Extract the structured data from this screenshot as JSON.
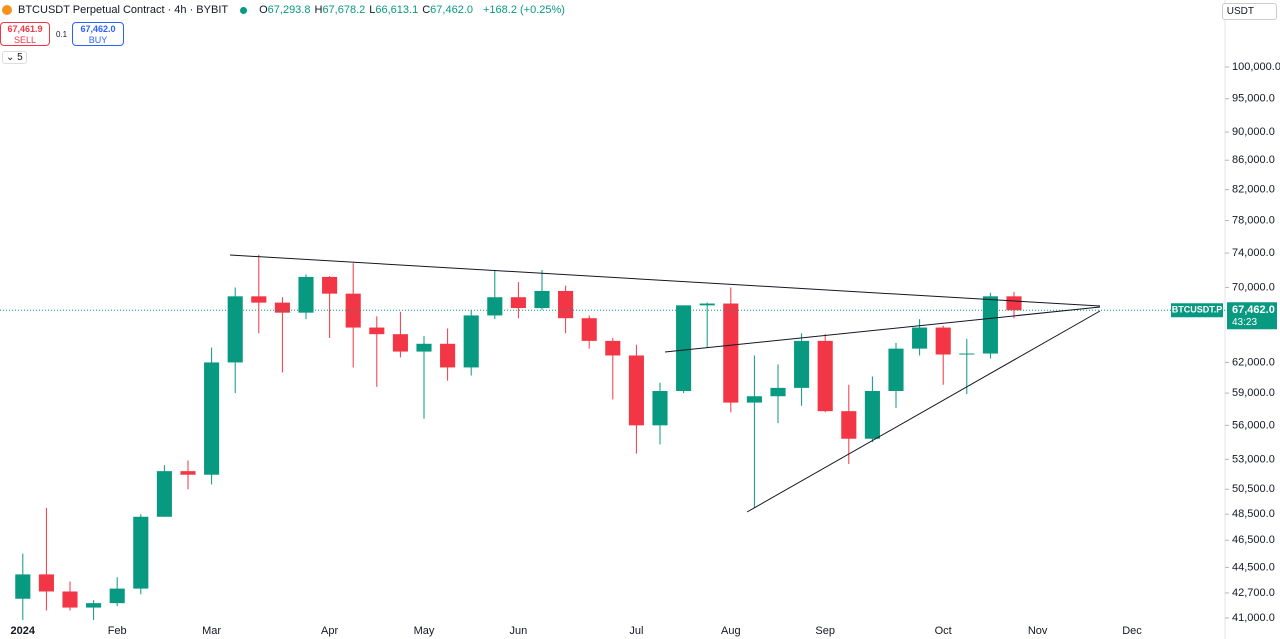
{
  "header": {
    "symbol": "BTCUSDT Perpetual Contract · 4h · BYBIT",
    "ohlc": [
      {
        "key": "O",
        "value": "67,293.8"
      },
      {
        "key": "H",
        "value": "67,678.2"
      },
      {
        "key": "L",
        "value": "66,613.1"
      },
      {
        "key": "C",
        "value": "67,462.0"
      }
    ],
    "change": "+168.2 (+0.25%)",
    "sell_price": "67,461.9",
    "sell_label": "SELL",
    "spread": "0.1",
    "buy_price": "67,462.0",
    "buy_label": "BUY",
    "indicators": "5",
    "currency": "USDT"
  },
  "chart_data": {
    "type": "candlestick",
    "log_scale": true,
    "grid": false,
    "up_color": "#089981",
    "down_color": "#f23645",
    "categories": [
      "2024",
      null,
      null,
      null,
      "Feb",
      null,
      null,
      null,
      "Mar",
      null,
      null,
      null,
      null,
      "Apr",
      null,
      null,
      null,
      "May",
      null,
      null,
      null,
      "Jun",
      null,
      null,
      null,
      null,
      "Jul",
      null,
      null,
      null,
      "Aug",
      null,
      null,
      null,
      "Sep",
      null,
      null,
      null,
      null,
      "Oct",
      null,
      null,
      null,
      "Nov",
      null,
      null,
      null,
      "Dec",
      null,
      null,
      null
    ],
    "open": [
      42300,
      44000,
      42800,
      41700,
      42000,
      43000,
      48300,
      52000,
      51700,
      62000,
      69000,
      68300,
      67200,
      71200,
      69300,
      65600,
      64900,
      63100,
      63900,
      61500,
      66900,
      68900,
      67700,
      69600,
      66600,
      64200,
      62700,
      56000,
      59200,
      68000,
      68200,
      58100,
      58700,
      59500,
      64200,
      57300,
      54800,
      59200,
      63400,
      65600,
      62800,
      62900,
      69000,
      null,
      null,
      null,
      null,
      null,
      null,
      null,
      null
    ],
    "high": [
      45500,
      49000,
      43500,
      42200,
      43800,
      48500,
      52500,
      52900,
      63500,
      70000,
      73800,
      68900,
      71500,
      71300,
      72800,
      66800,
      67300,
      64700,
      65500,
      67500,
      72000,
      70600,
      72000,
      70200,
      66900,
      64500,
      63800,
      60000,
      68000,
      68300,
      70000,
      62700,
      61800,
      65000,
      64900,
      59800,
      60600,
      64000,
      66500,
      65800,
      64400,
      69400,
      69500,
      null,
      null,
      null,
      null,
      null,
      null,
      null,
      null
    ],
    "low": [
      40800,
      41500,
      41500,
      40200,
      41800,
      42600,
      48300,
      50500,
      50900,
      59000,
      65000,
      61000,
      66500,
      64500,
      61500,
      59600,
      62500,
      56600,
      60200,
      60700,
      66500,
      66600,
      67500,
      65000,
      63400,
      58400,
      53500,
      54300,
      59000,
      63500,
      57200,
      49000,
      56200,
      57800,
      57200,
      52600,
      54500,
      57600,
      62700,
      59800,
      58900,
      62400,
      66600,
      null,
      null,
      null,
      null,
      null,
      null,
      null,
      null
    ],
    "close": [
      44000,
      42800,
      41700,
      42000,
      43000,
      48300,
      52000,
      51700,
      62000,
      69000,
      68300,
      67200,
      71200,
      69300,
      65600,
      64900,
      63100,
      63900,
      61500,
      66900,
      68900,
      67700,
      69600,
      66600,
      64200,
      62700,
      56000,
      59200,
      68000,
      68200,
      58100,
      58700,
      59500,
      64200,
      57300,
      54800,
      59200,
      63400,
      65600,
      62800,
      62900,
      69000,
      67462,
      null,
      null,
      null,
      null,
      null,
      null,
      null,
      null
    ],
    "ylim": [
      40870,
      107900
    ],
    "yticks": [
      {
        "value": 100000,
        "label": "100,000.0"
      },
      {
        "value": 95000,
        "label": "95,000.0"
      },
      {
        "value": 90000,
        "label": "90,000.0"
      },
      {
        "value": 86000,
        "label": "86,000.0"
      },
      {
        "value": 82000,
        "label": "82,000.0"
      },
      {
        "value": 78000,
        "label": "78,000.0"
      },
      {
        "value": 74000,
        "label": "74,000.0"
      },
      {
        "value": 70000,
        "label": "70,000.0"
      },
      {
        "value": 62000,
        "label": "62,000.0"
      },
      {
        "value": 59000,
        "label": "59,000.0"
      },
      {
        "value": 56000,
        "label": "56,000.0"
      },
      {
        "value": 53000,
        "label": "53,000.0"
      },
      {
        "value": 50500,
        "label": "50,500.0"
      },
      {
        "value": 48500,
        "label": "48,500.0"
      },
      {
        "value": 46500,
        "label": "46,500.0"
      },
      {
        "value": 44500,
        "label": "44,500.0"
      },
      {
        "value": 42700,
        "label": "42,700.0"
      },
      {
        "value": 41000,
        "label": "41,000.0"
      }
    ],
    "price_line": {
      "value": 67462,
      "label": "67,462.0",
      "symbol": "BTCUSDT.P",
      "countdown": "43:23"
    }
  }
}
